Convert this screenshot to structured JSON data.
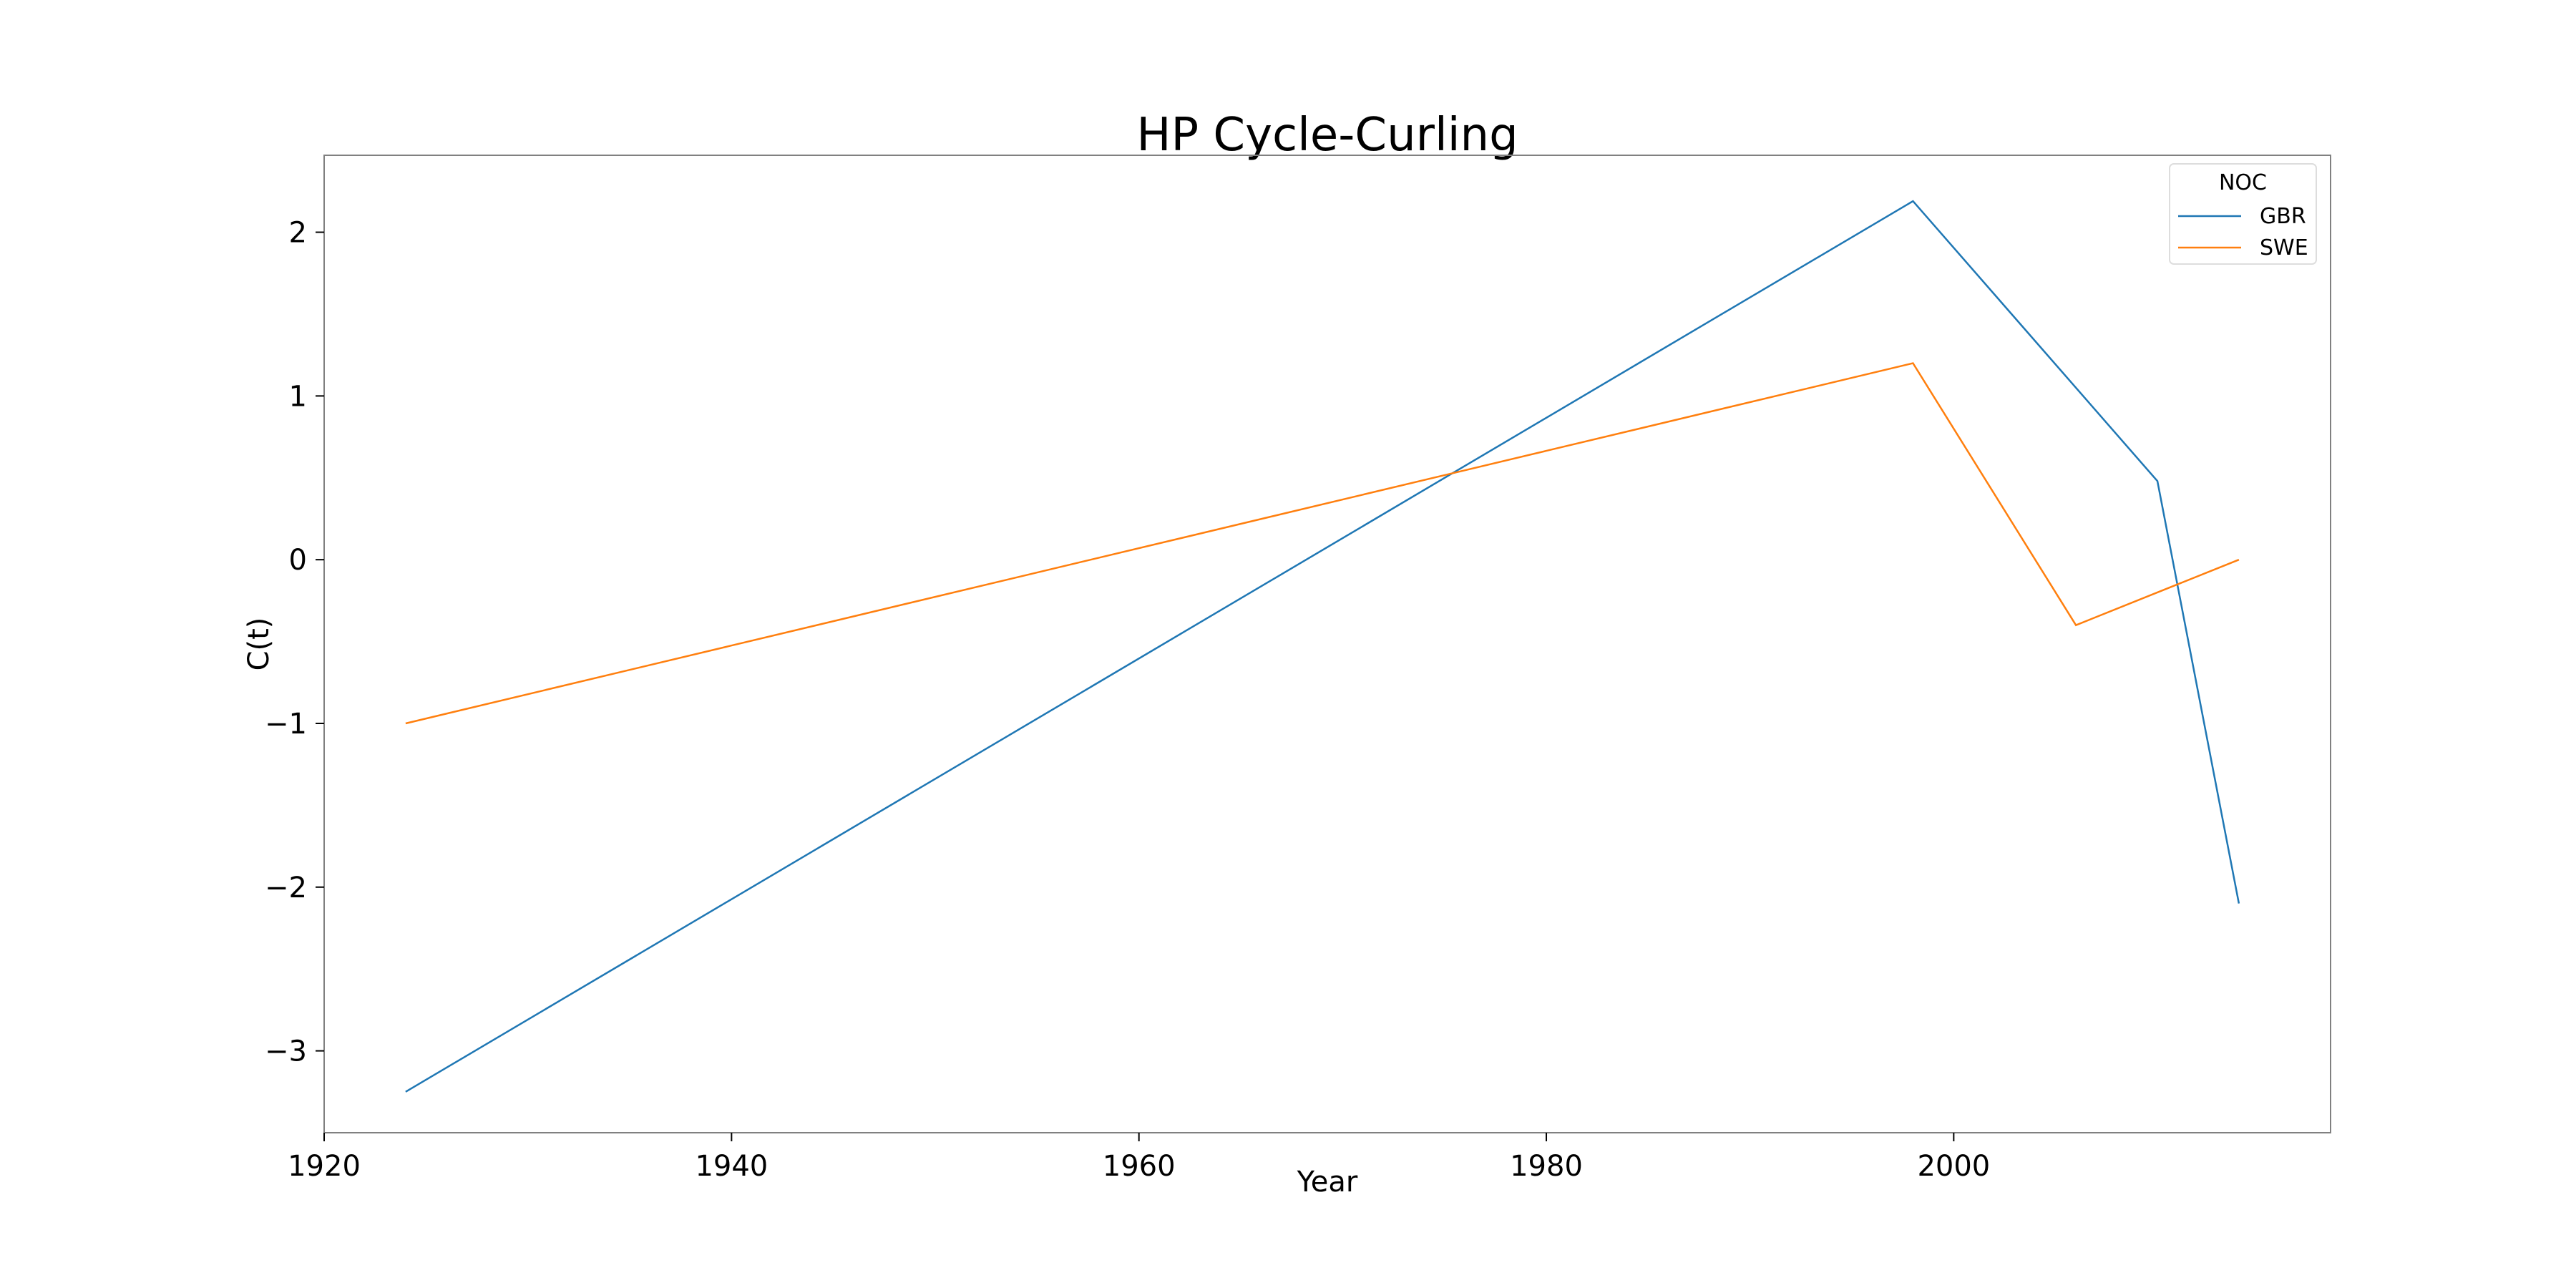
{
  "chart_data": {
    "type": "line",
    "title": "HP Cycle-Curling",
    "xlabel": "Year",
    "ylabel": "C(t)",
    "xlim": [
      1920,
      2018.5
    ],
    "ylim": [
      -3.5,
      2.47
    ],
    "xticks": [
      1920,
      1940,
      1960,
      1980,
      2000
    ],
    "yticks": [
      -3,
      -2,
      -1,
      0,
      1,
      2
    ],
    "grid": false,
    "legend": {
      "title": "NOC",
      "position": "top-right"
    },
    "series": [
      {
        "name": "GBR",
        "color": "#1f77b4",
        "x": [
          1924,
          1998,
          2010,
          2014
        ],
        "y": [
          -3.25,
          2.19,
          0.48,
          -2.1
        ]
      },
      {
        "name": "SWE",
        "color": "#ff7f0e",
        "x": [
          1924,
          1998,
          2006,
          2014
        ],
        "y": [
          -1.0,
          1.2,
          -0.4,
          0.0
        ]
      }
    ]
  }
}
